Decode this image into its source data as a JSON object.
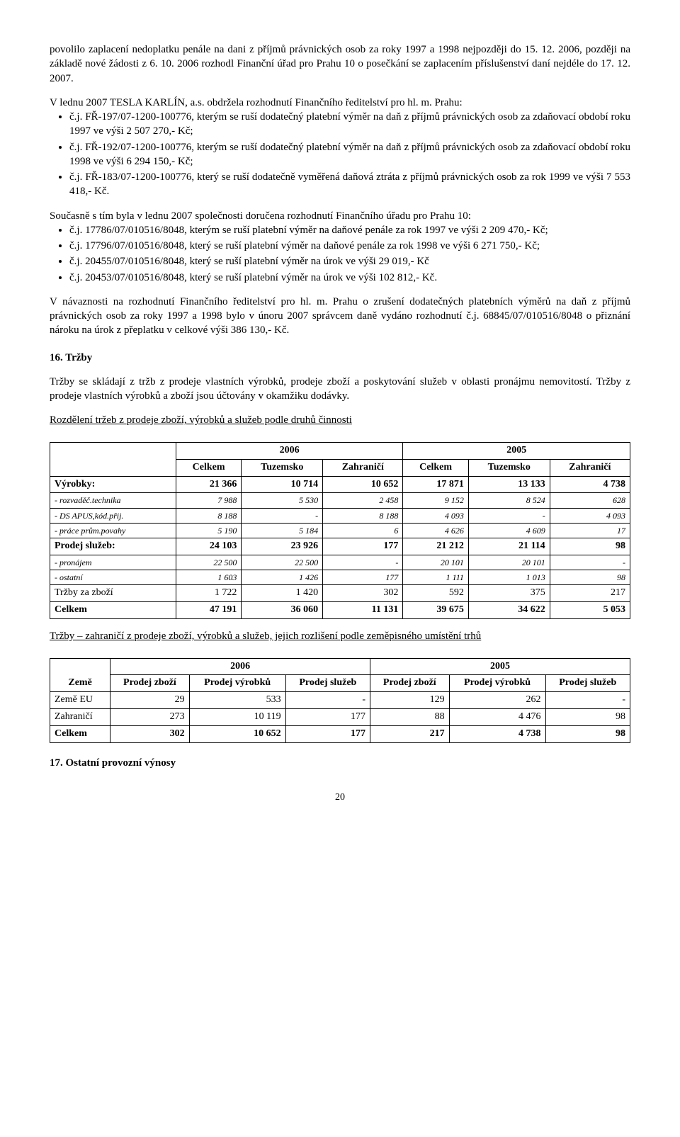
{
  "para1": "povolilo zaplacení nedoplatku penále na dani z příjmů právnických osob za roky 1997 a 1998 nejpozději do 15. 12. 2006, později na základě nové žádosti z 6. 10. 2006 rozhodl Finanční úřad pro Prahu 10 o posečkání se zaplacením příslušenství daní nejdéle do 17. 12. 2007.",
  "para2": "V lednu 2007 TESLA KARLÍN, a.s. obdržela rozhodnutí Finančního ředitelství pro hl. m. Prahu:",
  "list1": [
    "č.j. FŘ-197/07-1200-100776, kterým se ruší dodatečný platební výměr na daň z příjmů právnických osob za zdaňovací období roku 1997 ve výši 2 507 270,- Kč;",
    "č.j. FŘ-192/07-1200-100776, kterým se ruší dodatečný platební výměr na daň z příjmů právnických osob za zdaňovací období roku 1998 ve výši 6 294 150,- Kč;",
    "č.j. FŘ-183/07-1200-100776, který se ruší dodatečně vyměřená daňová ztráta z příjmů právnických osob za rok 1999 ve výši 7 553 418,- Kč."
  ],
  "para3": "Současně s tím byla v lednu 2007 společnosti doručena rozhodnutí Finančního úřadu pro Prahu 10:",
  "list2": [
    "č.j. 17786/07/010516/8048, kterým se ruší platební výměr na daňové penále za rok 1997 ve výši 2 209 470,- Kč;",
    "č.j. 17796/07/010516/8048, který se ruší platební výměr na daňové penále za rok 1998 ve výši 6 271 750,- Kč;",
    "č.j. 20455/07/010516/8048, který se ruší platební výměr na úrok ve výši 29 019,- Kč",
    "č.j. 20453/07/010516/8048, který se ruší platební výměr na úrok ve výši 102 812,- Kč."
  ],
  "para4": "V návaznosti na rozhodnutí Finančního ředitelství pro hl. m. Prahu o zrušení dodatečných platebních výměrů na daň z příjmů právnických osob za roky 1997 a 1998 bylo v únoru 2007 správcem daně vydáno rozhodnutí č.j. 68845/07/010516/8048 o přiznání nároku na úrok z přeplatku v celkové výši 386 130,- Kč.",
  "section16_title": "16. Tržby",
  "para5": "Tržby se skládají z tržb z prodeje vlastních výrobků, prodeje zboží a poskytování služeb v oblasti pronájmu nemovitostí. Tržby z prodeje vlastních výrobků a zboží jsou účtovány v okamžiku dodávky.",
  "table1_caption": "Rozdělení tržeb z prodeje zboží, výrobků a služeb podle druhů činnosti",
  "table1": {
    "year_a": "2006",
    "year_b": "2005",
    "cols": [
      "Celkem",
      "Tuzemsko",
      "Zahraničí",
      "Celkem",
      "Tuzemsko",
      "Zahraničí"
    ],
    "rows": [
      {
        "label": "Výrobky:",
        "bold": true,
        "cells": [
          "21 366",
          "10 714",
          "10 652",
          "17 871",
          "13 133",
          "4 738"
        ]
      },
      {
        "label": "- rozvaděč.technika",
        "italic": true,
        "cells": [
          "7 988",
          "5 530",
          "2 458",
          "9 152",
          "8 524",
          "628"
        ]
      },
      {
        "label": "- DS APUS,kód.přij.",
        "italic": true,
        "cells": [
          "8 188",
          "-",
          "8 188",
          "4 093",
          "-",
          "4 093"
        ]
      },
      {
        "label": "- práce prům.povahy",
        "italic": true,
        "cells": [
          "5 190",
          "5 184",
          "6",
          "4 626",
          "4 609",
          "17"
        ]
      },
      {
        "label": "Prodej služeb:",
        "bold": true,
        "cells": [
          "24 103",
          "23 926",
          "177",
          "21 212",
          "21 114",
          "98"
        ]
      },
      {
        "label": "-   pronájem",
        "italic": true,
        "cells": [
          "22 500",
          "22 500",
          "-",
          "20 101",
          "20 101",
          "-"
        ]
      },
      {
        "label": "-   ostatní",
        "italic": true,
        "cells": [
          "1 603",
          "1 426",
          "177",
          "1 111",
          "1 013",
          "98"
        ]
      },
      {
        "label": "Tržby za zboží",
        "cells": [
          "1 722",
          "1 420",
          "302",
          "592",
          "375",
          "217"
        ]
      },
      {
        "label": "Celkem",
        "bold": true,
        "cells": [
          "47 191",
          "36 060",
          "11 131",
          "39 675",
          "34 622",
          "5 053"
        ]
      }
    ]
  },
  "table2_caption": "Tržby – zahraničí z prodeje zboží, výrobků a služeb, jejich rozlišení podle zeměpisného umístění trhů",
  "table2": {
    "year_a": "2006",
    "year_b": "2005",
    "col0": "Země",
    "cols": [
      "Prodej zboží",
      "Prodej výrobků",
      "Prodej služeb",
      "Prodej zboží",
      "Prodej výrobků",
      "Prodej služeb"
    ],
    "rows": [
      {
        "label": "Země EU",
        "cells": [
          "29",
          "533",
          "-",
          "129",
          "262",
          "-"
        ]
      },
      {
        "label": "Zahraničí",
        "cells": [
          "273",
          "10 119",
          "177",
          "88",
          "4 476",
          "98"
        ]
      },
      {
        "label": "Celkem",
        "bold": true,
        "cells": [
          "302",
          "10 652",
          "177",
          "217",
          "4 738",
          "98"
        ]
      }
    ]
  },
  "section17_title": "17. Ostatní provozní výnosy",
  "page_number": "20"
}
